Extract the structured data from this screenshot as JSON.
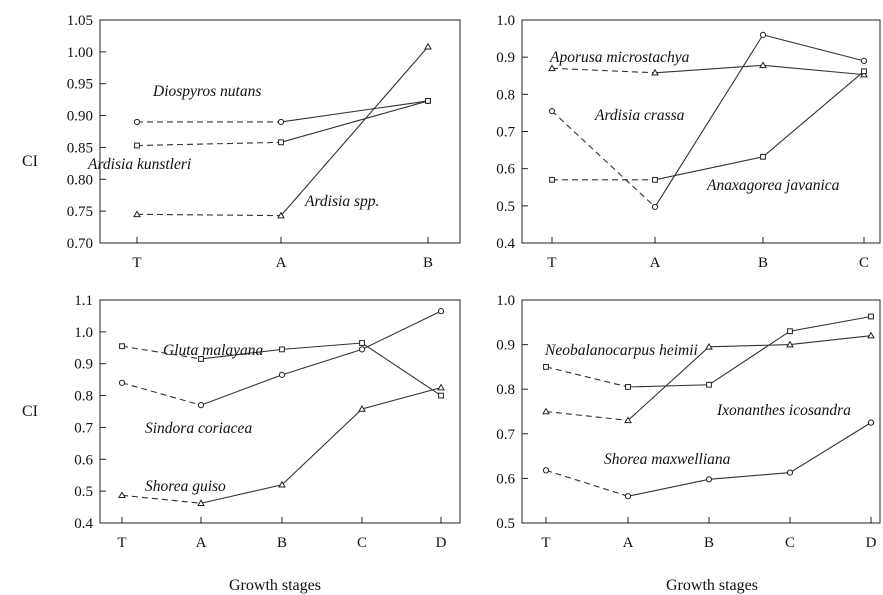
{
  "shared": {
    "ylabel": "CI",
    "xlabel": "Growth stages"
  },
  "chart_data": [
    {
      "type": "line",
      "categories": [
        "T",
        "A",
        "B"
      ],
      "ylim": [
        0.7,
        1.05
      ],
      "yticks": [
        "0.70",
        "0.75",
        "0.80",
        "0.85",
        "0.90",
        "0.95",
        "1.00",
        "1.05"
      ],
      "ylabel": "CI",
      "xlabel": "",
      "series": [
        {
          "name": "Diospyros nutans",
          "marker": "circle",
          "values": [
            0.89,
            0.89,
            0.923
          ]
        },
        {
          "name": "Ardisia kunstleri",
          "marker": "square",
          "values": [
            0.853,
            0.858,
            0.923
          ]
        },
        {
          "name": "Ardisia spp.",
          "marker": "triangle",
          "values": [
            0.745,
            0.743,
            1.008
          ]
        }
      ]
    },
    {
      "type": "line",
      "categories": [
        "T",
        "A",
        "B",
        "C"
      ],
      "ylim": [
        0.4,
        1.0
      ],
      "yticks": [
        "0.4",
        "0.5",
        "0.6",
        "0.7",
        "0.8",
        "0.9",
        "1.0"
      ],
      "ylabel": "",
      "xlabel": "",
      "series": [
        {
          "name": "Aporusa microstachya",
          "marker": "triangle",
          "values": [
            0.87,
            0.858,
            0.878,
            0.853
          ]
        },
        {
          "name": "Ardisia crassa",
          "marker": "circle",
          "values": [
            0.755,
            0.497,
            0.96,
            0.89
          ]
        },
        {
          "name": "Anaxagorea javanica",
          "marker": "square",
          "values": [
            0.57,
            0.57,
            0.632,
            0.862
          ]
        }
      ]
    },
    {
      "type": "line",
      "categories": [
        "T",
        "A",
        "B",
        "C",
        "D"
      ],
      "ylim": [
        0.4,
        1.1
      ],
      "yticks": [
        "0.4",
        "0.5",
        "0.6",
        "0.7",
        "0.8",
        "0.9",
        "1.0",
        "1.1"
      ],
      "ylabel": "CI",
      "xlabel": "Growth stages",
      "series": [
        {
          "name": "Gluta malayana",
          "marker": "square",
          "values": [
            0.955,
            0.915,
            0.945,
            0.965,
            0.8
          ]
        },
        {
          "name": "Sindora coriacea",
          "marker": "circle",
          "values": [
            0.84,
            0.77,
            0.865,
            0.945,
            1.065
          ]
        },
        {
          "name": "Shorea guiso",
          "marker": "triangle",
          "values": [
            0.487,
            0.462,
            0.52,
            0.758,
            0.825
          ]
        }
      ]
    },
    {
      "type": "line",
      "categories": [
        "T",
        "A",
        "B",
        "C",
        "D"
      ],
      "ylim": [
        0.5,
        1.0
      ],
      "yticks": [
        "0.5",
        "0.6",
        "0.7",
        "0.8",
        "0.9",
        "1.0"
      ],
      "ylabel": "",
      "xlabel": "Growth stages",
      "series": [
        {
          "name": "Neobalanocarpus heimii",
          "marker": "square",
          "values": [
            0.85,
            0.805,
            0.81,
            0.93,
            0.963
          ]
        },
        {
          "name": "Ixonanthes icosandra",
          "marker": "triangle",
          "values": [
            0.75,
            0.73,
            0.895,
            0.9,
            0.92
          ]
        },
        {
          "name": "Shorea maxwelliana",
          "marker": "circle",
          "values": [
            0.618,
            0.56,
            0.598,
            0.613,
            0.725
          ]
        }
      ]
    }
  ]
}
